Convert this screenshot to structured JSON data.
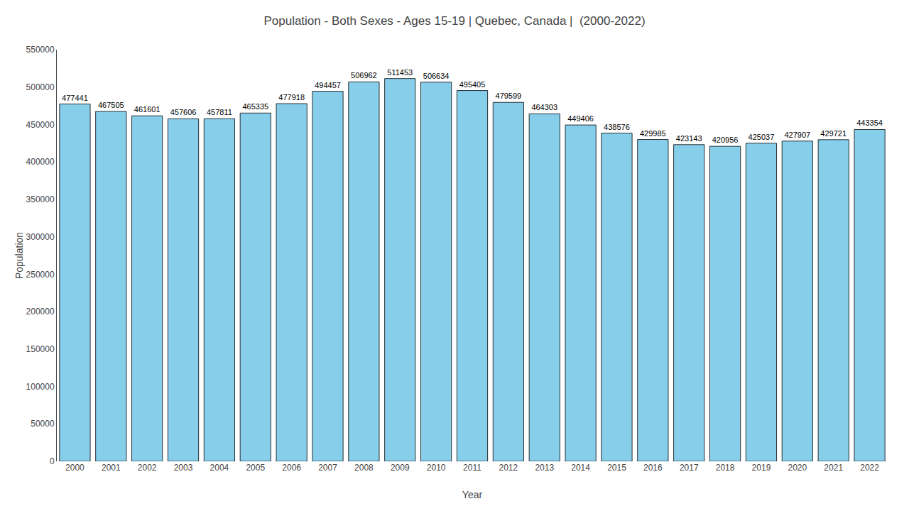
{
  "chart_data": {
    "type": "bar",
    "title": "Population - Both Sexes - Ages 15-19 | Quebec, Canada |  (2000-2022)",
    "xlabel": "Year",
    "ylabel": "Population",
    "categories": [
      "2000",
      "2001",
      "2002",
      "2003",
      "2004",
      "2005",
      "2006",
      "2007",
      "2008",
      "2009",
      "2010",
      "2011",
      "2012",
      "2013",
      "2014",
      "2015",
      "2016",
      "2017",
      "2018",
      "2019",
      "2020",
      "2021",
      "2022"
    ],
    "values": [
      477441,
      467505,
      461601,
      457606,
      457811,
      465335,
      477918,
      494457,
      506962,
      511453,
      506634,
      495405,
      479599,
      464303,
      449406,
      438576,
      429985,
      423143,
      420956,
      425037,
      427907,
      429721,
      443354
    ],
    "color": "#87CEEB",
    "ylim": [
      0,
      550000
    ],
    "yticks": [
      0,
      50000,
      100000,
      150000,
      200000,
      250000,
      300000,
      350000,
      400000,
      450000,
      500000,
      550000
    ],
    "grid": false,
    "data_labels": true
  }
}
